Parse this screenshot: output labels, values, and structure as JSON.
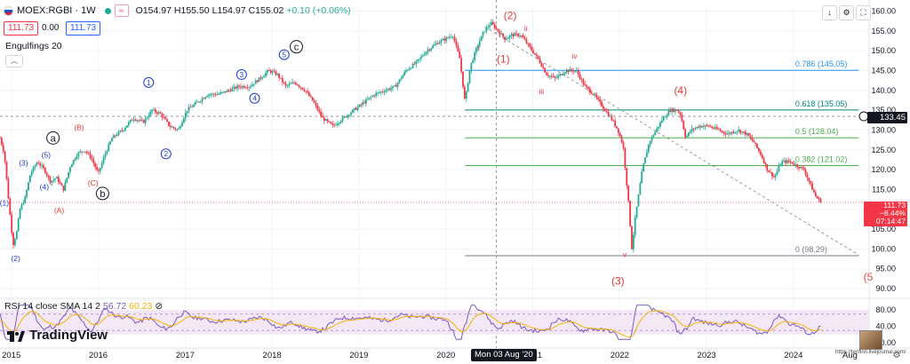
{
  "header": {
    "symbol": "MOEX:RGBI · 1W",
    "open": "O154.97",
    "high": "H155.50",
    "low": "L154.97",
    "close": "C155.02",
    "change": "+0.10 (+0.06%)",
    "sell_price": "111.73",
    "spread": "0.00",
    "buy_price": "111.73",
    "tiny_btn": "≈"
  },
  "indicator": {
    "label": "Engulfings 20",
    "collapse_icon": "chevron-up-icon"
  },
  "rsi": {
    "label": "RSI 14 close SMA 14 2",
    "value1": "56.72",
    "value2": "60.23",
    "levels": [
      80,
      40,
      0
    ]
  },
  "branding": {
    "logo": "TradingView",
    "watermark": "https://tenfinn.livejournal.com/"
  },
  "crosshair": {
    "date_label": "Mon 03 Aug '20"
  },
  "price_badges": {
    "current": "133.45",
    "last": "111.73",
    "last_pct": "−8.44%",
    "last_time": "07:14:47"
  },
  "colors": {
    "up": "#22ab94",
    "down": "#f23645",
    "fib_top": "#2196f3",
    "fib_mid": "#00897b",
    "fib_green": "#4caf50",
    "red_label": "#e53935",
    "blue_label": "#1a3ccf",
    "rsi_line": "#7e57c2",
    "rsi_sma": "#f0b400"
  },
  "chart_data": {
    "type": "candlestick",
    "y_axis": {
      "ticks": [
        90,
        95,
        100,
        105,
        110,
        115,
        120,
        125,
        130,
        135,
        140,
        145,
        150,
        155,
        160
      ],
      "ylim": [
        88,
        161
      ]
    },
    "x_axis": {
      "ticks": [
        "2015",
        "2016",
        "2017",
        "2018",
        "2019",
        "2020",
        "2021",
        "2022",
        "2023",
        "2024",
        "Aug"
      ],
      "range": [
        2014.87,
        2024.87
      ]
    },
    "price_path": [
      [
        2014.87,
        128
      ],
      [
        2014.92,
        124
      ],
      [
        2014.97,
        112
      ],
      [
        2015.02,
        101
      ],
      [
        2015.06,
        104
      ],
      [
        2015.1,
        110
      ],
      [
        2015.16,
        113
      ],
      [
        2015.22,
        119
      ],
      [
        2015.3,
        122
      ],
      [
        2015.38,
        120
      ],
      [
        2015.45,
        117
      ],
      [
        2015.52,
        118
      ],
      [
        2015.6,
        115
      ],
      [
        2015.68,
        121
      ],
      [
        2015.76,
        124
      ],
      [
        2015.84,
        125
      ],
      [
        2015.92,
        123
      ],
      [
        2016.0,
        119
      ],
      [
        2016.08,
        124
      ],
      [
        2016.16,
        128
      ],
      [
        2016.28,
        130
      ],
      [
        2016.4,
        133
      ],
      [
        2016.52,
        132
      ],
      [
        2016.62,
        135
      ],
      [
        2016.72,
        134
      ],
      [
        2016.82,
        131
      ],
      [
        2016.92,
        130
      ],
      [
        2017.02,
        135
      ],
      [
        2017.14,
        137
      ],
      [
        2017.26,
        139
      ],
      [
        2017.38,
        139
      ],
      [
        2017.5,
        140
      ],
      [
        2017.62,
        141
      ],
      [
        2017.74,
        141
      ],
      [
        2017.86,
        143
      ],
      [
        2017.96,
        145
      ],
      [
        2018.06,
        144
      ],
      [
        2018.16,
        141
      ],
      [
        2018.26,
        142
      ],
      [
        2018.38,
        140
      ],
      [
        2018.48,
        137
      ],
      [
        2018.58,
        133
      ],
      [
        2018.7,
        131
      ],
      [
        2018.82,
        133
      ],
      [
        2018.94,
        135
      ],
      [
        2019.06,
        137
      ],
      [
        2019.18,
        139
      ],
      [
        2019.3,
        140
      ],
      [
        2019.42,
        141
      ],
      [
        2019.54,
        145
      ],
      [
        2019.66,
        147
      ],
      [
        2019.78,
        150
      ],
      [
        2019.9,
        152
      ],
      [
        2020.0,
        153
      ],
      [
        2020.08,
        154
      ],
      [
        2020.16,
        148
      ],
      [
        2020.22,
        137
      ],
      [
        2020.28,
        146
      ],
      [
        2020.36,
        151
      ],
      [
        2020.44,
        155
      ],
      [
        2020.52,
        157
      ],
      [
        2020.6,
        155
      ],
      [
        2020.68,
        153
      ],
      [
        2020.76,
        154
      ],
      [
        2020.86,
        154
      ],
      [
        2020.96,
        151
      ],
      [
        2021.06,
        148
      ],
      [
        2021.16,
        144
      ],
      [
        2021.26,
        143
      ],
      [
        2021.38,
        145
      ],
      [
        2021.5,
        145
      ],
      [
        2021.6,
        141
      ],
      [
        2021.7,
        139
      ],
      [
        2021.8,
        136
      ],
      [
        2021.9,
        133
      ],
      [
        2021.98,
        130
      ],
      [
        2022.04,
        126
      ],
      [
        2022.1,
        112
      ],
      [
        2022.14,
        100
      ],
      [
        2022.18,
        108
      ],
      [
        2022.26,
        120
      ],
      [
        2022.34,
        127
      ],
      [
        2022.42,
        130
      ],
      [
        2022.5,
        133
      ],
      [
        2022.58,
        135
      ],
      [
        2022.66,
        135
      ],
      [
        2022.7,
        134
      ],
      [
        2022.76,
        128
      ],
      [
        2022.82,
        130
      ],
      [
        2022.92,
        131
      ],
      [
        2023.02,
        131
      ],
      [
        2023.14,
        130
      ],
      [
        2023.24,
        129
      ],
      [
        2023.36,
        130
      ],
      [
        2023.46,
        129
      ],
      [
        2023.54,
        127
      ],
      [
        2023.62,
        124
      ],
      [
        2023.7,
        120
      ],
      [
        2023.78,
        118
      ],
      [
        2023.86,
        122
      ],
      [
        2023.96,
        122
      ],
      [
        2024.04,
        121
      ],
      [
        2024.12,
        120
      ],
      [
        2024.2,
        116
      ],
      [
        2024.26,
        113
      ],
      [
        2024.32,
        112
      ]
    ],
    "fib_levels": [
      {
        "label": "0.786 (145.05)",
        "value": 145.05
      },
      {
        "label": "0.618 (135.05)",
        "value": 135.05
      },
      {
        "label": "0.5 (128.04)",
        "value": 128.04
      },
      {
        "label": "0.382 (121.02)",
        "value": 121.02
      },
      {
        "label": "0 (98.29)",
        "value": 98.29
      }
    ],
    "annotations": [
      {
        "text": "(1)",
        "x": 2014.92,
        "y": 111,
        "color": "blue"
      },
      {
        "text": "(2)",
        "x": 2015.05,
        "y": 97,
        "color": "blue"
      },
      {
        "text": "(3)",
        "x": 2015.14,
        "y": 121,
        "color": "blue"
      },
      {
        "text": "(4)",
        "x": 2015.38,
        "y": 115,
        "color": "blue"
      },
      {
        "text": "(5)",
        "x": 2015.4,
        "y": 123,
        "color": "blue"
      },
      {
        "text": "a",
        "x": 2015.48,
        "y": 128,
        "color": "black-circle"
      },
      {
        "text": "(B)",
        "x": 2015.78,
        "y": 130,
        "color": "red"
      },
      {
        "text": "(C)",
        "x": 2015.94,
        "y": 116,
        "color": "red"
      },
      {
        "text": "(A)",
        "x": 2015.55,
        "y": 109,
        "color": "red"
      },
      {
        "text": "b",
        "x": 2016.05,
        "y": 114,
        "color": "black-circle"
      },
      {
        "text": "1",
        "x": 2016.58,
        "y": 142,
        "color": "blue-circle"
      },
      {
        "text": "2",
        "x": 2016.78,
        "y": 124,
        "color": "blue-circle"
      },
      {
        "text": "3",
        "x": 2017.65,
        "y": 144,
        "color": "blue-circle"
      },
      {
        "text": "4",
        "x": 2017.8,
        "y": 138,
        "color": "blue-circle"
      },
      {
        "text": "5",
        "x": 2018.14,
        "y": 149,
        "color": "blue-circle"
      },
      {
        "text": "c",
        "x": 2018.28,
        "y": 151,
        "color": "black-circle"
      },
      {
        "text": "(2)",
        "x": 2020.74,
        "y": 158,
        "color": "red"
      },
      {
        "text": "i",
        "x": 2020.38,
        "y": 150,
        "color": "red"
      },
      {
        "text": "ii",
        "x": 2020.92,
        "y": 155,
        "color": "red"
      },
      {
        "text": "(1)",
        "x": 2020.66,
        "y": 147,
        "color": "red"
      },
      {
        "text": "iii",
        "x": 2021.1,
        "y": 139,
        "color": "red"
      },
      {
        "text": "iv",
        "x": 2021.48,
        "y": 148,
        "color": "red"
      },
      {
        "text": "(4)",
        "x": 2022.7,
        "y": 139,
        "color": "red"
      },
      {
        "text": "v",
        "x": 2022.06,
        "y": 98,
        "color": "red"
      },
      {
        "text": "(3)",
        "x": 2021.98,
        "y": 91,
        "color": "red"
      },
      {
        "text": "(5",
        "x": 2024.86,
        "y": 92,
        "color": "red"
      }
    ]
  }
}
